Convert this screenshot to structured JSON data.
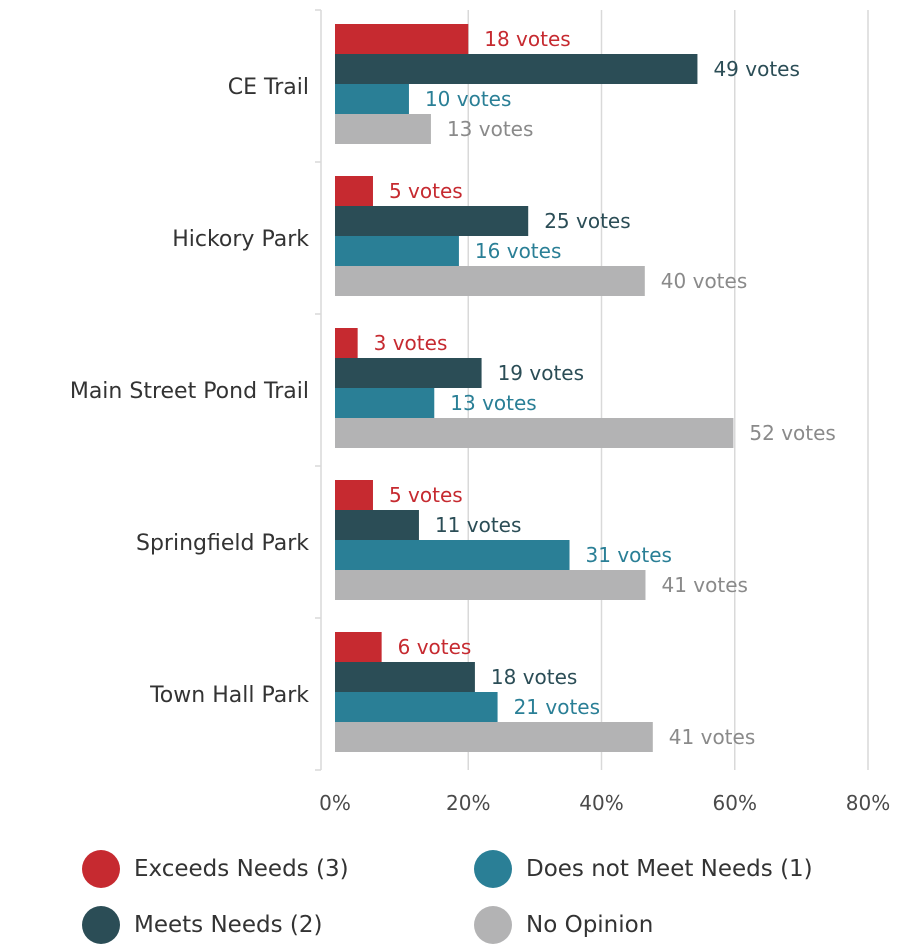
{
  "chart_data": {
    "type": "bar",
    "orientation": "horizontal",
    "categories": [
      "CE Trail",
      "Hickory Park",
      "Main Street Pond Trail",
      "Springfield Park",
      "Town Hall Park"
    ],
    "xlim": [
      0,
      0.8
    ],
    "x_ticks": [
      0,
      0.2,
      0.4,
      0.6,
      0.8
    ],
    "x_tick_labels": [
      "0%",
      "20%",
      "40%",
      "60%",
      "80%"
    ],
    "grid": true,
    "legend_position": "bottom",
    "series": [
      {
        "name": "Exceeds Needs (3)",
        "color": "#c62a30",
        "values": [
          0.2,
          0.057,
          0.034,
          0.057,
          0.07
        ],
        "labels": [
          "18 votes",
          "5 votes",
          "3 votes",
          "5 votes",
          "6 votes"
        ]
      },
      {
        "name": "Meets Needs (2)",
        "color": "#2b4d56",
        "values": [
          0.544,
          0.29,
          0.22,
          0.126,
          0.21
        ],
        "labels": [
          "49 votes",
          "25 votes",
          "19 votes",
          "11 votes",
          "18 votes"
        ]
      },
      {
        "name": "Does not Meet Needs (1)",
        "color": "#2a7f96",
        "values": [
          0.111,
          0.186,
          0.149,
          0.352,
          0.244
        ],
        "labels": [
          "10 votes",
          "16 votes",
          "13 votes",
          "31 votes",
          "21 votes"
        ]
      },
      {
        "name": "No Opinion",
        "color": "#b3b3b4",
        "values": [
          0.144,
          0.465,
          0.598,
          0.466,
          0.477
        ],
        "labels": [
          "13 votes",
          "40 votes",
          "52 votes",
          "41 votes",
          "41 votes"
        ]
      }
    ]
  },
  "label_colors": [
    "#c62a30",
    "#2b4d56",
    "#2a7f96",
    "#8a8a8a"
  ]
}
